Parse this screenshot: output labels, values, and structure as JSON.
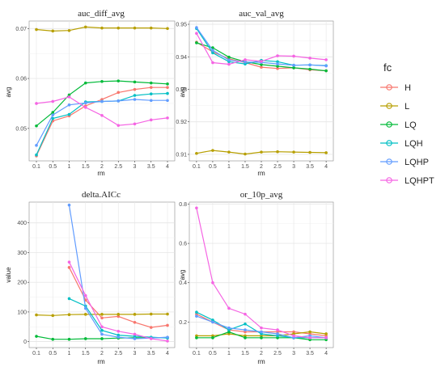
{
  "legend": {
    "title": "fc",
    "items": [
      {
        "name": "H",
        "color": "#F8766D"
      },
      {
        "name": "L",
        "color": "#B79F00"
      },
      {
        "name": "LQ",
        "color": "#00BA38"
      },
      {
        "name": "LQH",
        "color": "#00BFC4"
      },
      {
        "name": "LQHP",
        "color": "#619CFF"
      },
      {
        "name": "LQHPT",
        "color": "#F564E3"
      }
    ]
  },
  "chart_data": [
    {
      "type": "line",
      "title": "auc_diff_avg",
      "xlabel": "rm",
      "ylabel": "avg",
      "x": [
        "0.1",
        "0.5",
        "1",
        "1.5",
        "2",
        "2.5",
        "3",
        "3.5",
        "4"
      ],
      "ylim": [
        0.0435,
        0.0715
      ],
      "yticks": [
        0.05,
        0.06,
        0.07
      ],
      "yticklabels": [
        "0.05",
        "0.06",
        "0.07"
      ],
      "grid": true,
      "series": [
        {
          "name": "H",
          "color": "#F8766D",
          "values": [
            0.0445,
            0.0515,
            0.0525,
            0.0545,
            0.0558,
            0.0572,
            0.0578,
            0.0582,
            0.0582
          ]
        },
        {
          "name": "L",
          "color": "#B79F00",
          "values": [
            0.0698,
            0.0695,
            0.0696,
            0.0703,
            0.0701,
            0.0701,
            0.0701,
            0.0701,
            0.07
          ]
        },
        {
          "name": "LQ",
          "color": "#00BA38",
          "values": [
            0.0505,
            0.0532,
            0.0567,
            0.0591,
            0.0594,
            0.0595,
            0.0593,
            0.0591,
            0.0589
          ]
        },
        {
          "name": "LQH",
          "color": "#00BFC4",
          "values": [
            0.0447,
            0.052,
            0.0528,
            0.0553,
            0.0554,
            0.0555,
            0.0566,
            0.0569,
            0.057
          ]
        },
        {
          "name": "LQHP",
          "color": "#619CFF",
          "values": [
            0.0466,
            0.0527,
            0.0547,
            0.0551,
            0.0554,
            0.0555,
            0.0558,
            0.0556,
            0.0556
          ]
        },
        {
          "name": "LQHPT",
          "color": "#F564E3",
          "values": [
            0.055,
            0.0554,
            0.0563,
            0.0542,
            0.0526,
            0.0506,
            0.0509,
            0.0517,
            0.0521
          ]
        }
      ]
    },
    {
      "type": "line",
      "title": "auc_val_avg",
      "xlabel": "rm",
      "ylabel": "avg",
      "x": [
        "0.1",
        "0.5",
        "1",
        "1.5",
        "2",
        "2.5",
        "3",
        "3.5",
        "4"
      ],
      "ylim": [
        0.908,
        0.951
      ],
      "yticks": [
        0.91,
        0.92,
        0.93,
        0.94,
        0.95
      ],
      "yticklabels": [
        "0.91",
        "0.92",
        "0.93",
        "0.94",
        "0.95"
      ],
      "grid": true,
      "series": [
        {
          "name": "H",
          "color": "#F8766D",
          "values": [
            0.9445,
            0.9415,
            0.9394,
            0.9382,
            0.9368,
            0.9364,
            0.9366,
            0.936,
            0.9357
          ]
        },
        {
          "name": "L",
          "color": "#B79F00",
          "values": [
            0.9103,
            0.9112,
            0.9107,
            0.9101,
            0.9107,
            0.9108,
            0.9107,
            0.9106,
            0.9105
          ]
        },
        {
          "name": "LQ",
          "color": "#00BA38",
          "values": [
            0.9443,
            0.9428,
            0.9399,
            0.9385,
            0.9376,
            0.9371,
            0.9366,
            0.9362,
            0.9357
          ]
        },
        {
          "name": "LQH",
          "color": "#00BFC4",
          "values": [
            0.9487,
            0.9412,
            0.9385,
            0.9378,
            0.9389,
            0.9385,
            0.9374,
            0.9375,
            0.9373
          ]
        },
        {
          "name": "LQHP",
          "color": "#619CFF",
          "values": [
            0.949,
            0.942,
            0.939,
            0.9384,
            0.9383,
            0.9378,
            0.9374,
            0.9375,
            0.9372
          ]
        },
        {
          "name": "LQHPT",
          "color": "#F564E3",
          "values": [
            0.9472,
            0.9382,
            0.9377,
            0.9391,
            0.9386,
            0.9403,
            0.9402,
            0.9396,
            0.9391
          ]
        }
      ]
    },
    {
      "type": "line",
      "title": "delta.AICc",
      "xlabel": "rm",
      "ylabel": "value",
      "x": [
        "0.1",
        "0.5",
        "1",
        "1.5",
        "2",
        "2.5",
        "3",
        "3.5",
        "4"
      ],
      "ylim": [
        -20,
        470
      ],
      "yticks": [
        0,
        100,
        200,
        300,
        400
      ],
      "yticklabels": [
        "0",
        "100",
        "200",
        "300",
        "400"
      ],
      "grid": true,
      "series": [
        {
          "name": "H",
          "color": "#F8766D",
          "values": [
            null,
            null,
            250,
            140,
            80,
            85,
            65,
            48,
            55
          ]
        },
        {
          "name": "L",
          "color": "#B79F00",
          "values": [
            90,
            88,
            91,
            92,
            92,
            92,
            92,
            93,
            93
          ]
        },
        {
          "name": "LQ",
          "color": "#00BA38",
          "values": [
            18,
            8,
            8,
            10,
            10,
            12,
            13,
            13,
            14
          ]
        },
        {
          "name": "LQH",
          "color": "#00BFC4",
          "values": [
            null,
            null,
            145,
            120,
            38,
            22,
            18,
            15,
            12
          ]
        },
        {
          "name": "LQHP",
          "color": "#619CFF",
          "values": [
            null,
            null,
            460,
            112,
            25,
            15,
            10,
            12,
            15
          ]
        },
        {
          "name": "LQHPT",
          "color": "#F564E3",
          "values": [
            null,
            null,
            268,
            155,
            50,
            35,
            25,
            10,
            2
          ]
        }
      ]
    },
    {
      "type": "line",
      "title": "or_10p_avg",
      "xlabel": "rm",
      "ylabel": "avg",
      "x": [
        "0.1",
        "0.5",
        "1",
        "1.5",
        "2",
        "2.5",
        "3",
        "3.5",
        "4"
      ],
      "ylim": [
        0.07,
        0.81
      ],
      "yticks": [
        0.2,
        0.4,
        0.6,
        0.8
      ],
      "yticklabels": [
        "0.2",
        "0.4",
        "0.6",
        "0.8"
      ],
      "grid": true,
      "series": [
        {
          "name": "H",
          "color": "#F8766D",
          "values": [
            0.24,
            0.2,
            0.16,
            0.15,
            0.15,
            0.15,
            0.15,
            0.14,
            0.13
          ]
        },
        {
          "name": "L",
          "color": "#B79F00",
          "values": [
            0.13,
            0.13,
            0.14,
            0.13,
            0.13,
            0.13,
            0.14,
            0.15,
            0.14
          ]
        },
        {
          "name": "LQ",
          "color": "#00BA38",
          "values": [
            0.12,
            0.12,
            0.15,
            0.12,
            0.12,
            0.12,
            0.12,
            0.11,
            0.11
          ]
        },
        {
          "name": "LQH",
          "color": "#00BFC4",
          "values": [
            0.25,
            0.21,
            0.16,
            0.19,
            0.14,
            0.13,
            0.12,
            0.12,
            0.12
          ]
        },
        {
          "name": "LQHP",
          "color": "#619CFF",
          "values": [
            0.23,
            0.2,
            0.17,
            0.16,
            0.15,
            0.14,
            0.12,
            0.13,
            0.12
          ]
        },
        {
          "name": "LQHPT",
          "color": "#F564E3",
          "values": [
            0.78,
            0.4,
            0.27,
            0.24,
            0.17,
            0.16,
            0.13,
            0.12,
            0.12
          ]
        }
      ]
    }
  ]
}
